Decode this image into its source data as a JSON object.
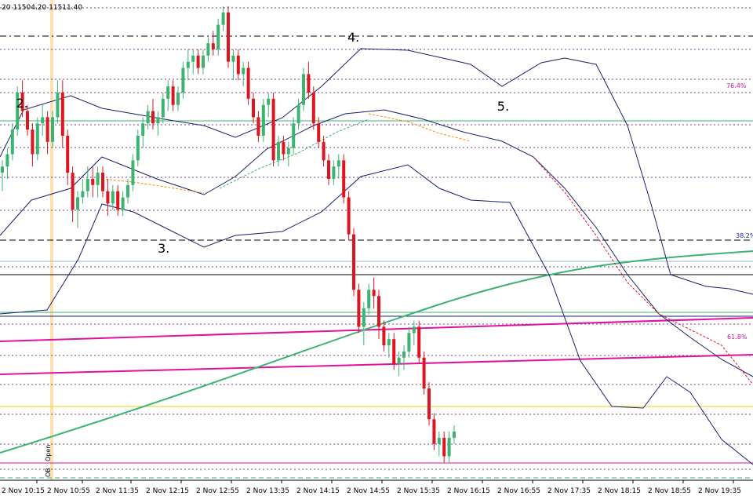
{
  "header": {
    "ohlc_text": "20 11504.20 11511.40"
  },
  "colors": {
    "bull": "#3cb371",
    "bear": "#e0141e",
    "bollinger": "#1b1f6b",
    "ma_long": "#3cb371",
    "ma_dash_red": "#e0141e",
    "ma_dash_orange": "#ff8c00",
    "ma_dash_green": "#3cb371",
    "pink_trend": "#e0119f",
    "fib_pink": "#d0179b",
    "fib_blue": "#1a1ab4",
    "session_line": "#ffe0b0",
    "yellow_line": "#e8d000"
  },
  "waves": [
    {
      "label": "2.",
      "bar": 4
    },
    {
      "label": "3.",
      "bar": 30
    },
    {
      "label": "4.",
      "bar": 70
    },
    {
      "label": "5.",
      "bar": 97
    }
  ],
  "fib_labels": [
    {
      "label": "76.4%",
      "color": "pink"
    },
    {
      "label": "38.2%",
      "color": "blue"
    },
    {
      "label": "61.8%",
      "color": "pink"
    }
  ],
  "session_labels": {
    "open": "Open",
    "ob": "OB"
  },
  "chart_data": {
    "type": "candlestick",
    "instrument": "",
    "x_tick_labels": [
      "2 Nov 10:15",
      "2 Nov 10:55",
      "2 Nov 11:35",
      "2 Nov 12:15",
      "2 Nov 12:55",
      "2 Nov 13:35",
      "2 Nov 14:15",
      "2 Nov 14:55",
      "2 Nov 15:35",
      "2 Nov 16:15",
      "2 Nov 16:55",
      "2 Nov 17:35",
      "2 Nov 18:15",
      "2 Nov 18:55",
      "2 Nov 19:35"
    ],
    "ylim": [
      11460,
      11536
    ],
    "candles": [
      [
        11509,
        11511,
        11506,
        11510
      ],
      [
        11510,
        11513,
        11508,
        11512
      ],
      [
        11512,
        11517,
        11511,
        11516
      ],
      [
        11516,
        11523,
        11515,
        11522
      ],
      [
        11522,
        11524,
        11518,
        11519
      ],
      [
        11519,
        11520,
        11515,
        11516
      ],
      [
        11516,
        11517,
        11510,
        11512
      ],
      [
        11512,
        11518,
        11511,
        11517
      ],
      [
        11517,
        11520,
        11515,
        11518
      ],
      [
        11518,
        11519,
        11512,
        11514
      ],
      [
        11514,
        11519,
        11513,
        11518
      ],
      [
        11518,
        11524,
        11517,
        11522
      ],
      [
        11522,
        11524,
        11513,
        11515
      ],
      [
        11515,
        11516,
        11507,
        11509
      ],
      [
        11509,
        11510,
        11501,
        11503
      ],
      [
        11503,
        11506,
        11500,
        11505
      ],
      [
        11505,
        11508,
        11504,
        11506
      ],
      [
        11506,
        11510,
        11505,
        11508
      ],
      [
        11508,
        11510,
        11505,
        11507
      ],
      [
        11507,
        11510,
        11505,
        11509
      ],
      [
        11509,
        11510,
        11505,
        11506
      ],
      [
        11506,
        11508,
        11502,
        11504
      ],
      [
        11504,
        11507,
        11503,
        11506
      ],
      [
        11506,
        11507,
        11502,
        11503
      ],
      [
        11503,
        11506,
        11502,
        11505
      ],
      [
        11505,
        11508,
        11504,
        11507
      ],
      [
        11507,
        11512,
        11506,
        11511
      ],
      [
        11511,
        11516,
        11510,
        11515
      ],
      [
        11515,
        11518,
        11513,
        11517
      ],
      [
        11517,
        11520,
        11516,
        11519
      ],
      [
        11519,
        11521,
        11516,
        11517
      ],
      [
        11517,
        11519,
        11515,
        11518
      ],
      [
        11518,
        11522,
        11517,
        11521
      ],
      [
        11521,
        11524,
        11519,
        11523
      ],
      [
        11523,
        11524,
        11519,
        11520
      ],
      [
        11520,
        11523,
        11519,
        11522
      ],
      [
        11522,
        11527,
        11521,
        11526
      ],
      [
        11526,
        11529,
        11524,
        11527
      ],
      [
        11527,
        11529,
        11525,
        11528
      ],
      [
        11528,
        11529,
        11525,
        11526
      ],
      [
        11526,
        11529,
        11525,
        11528
      ],
      [
        11528,
        11531,
        11527,
        11530
      ],
      [
        11530,
        11532,
        11528,
        11529
      ],
      [
        11529,
        11534,
        11528,
        11533
      ],
      [
        11533,
        11536,
        11532,
        11535
      ],
      [
        11535,
        11536,
        11526,
        11527
      ],
      [
        11527,
        11529,
        11524,
        11528
      ],
      [
        11528,
        11529,
        11524,
        11525
      ],
      [
        11525,
        11527,
        11523,
        11526
      ],
      [
        11526,
        11527,
        11520,
        11521
      ],
      [
        11521,
        11522,
        11517,
        11518
      ],
      [
        11518,
        11519,
        11514,
        11515
      ],
      [
        11515,
        11521,
        11514,
        11520
      ],
      [
        11520,
        11522,
        11518,
        11521
      ],
      [
        11521,
        11522,
        11510,
        11511
      ],
      [
        11511,
        11515,
        11510,
        11514
      ],
      [
        11514,
        11515,
        11511,
        11512
      ],
      [
        11512,
        11514,
        11510,
        11513
      ],
      [
        11513,
        11518,
        11512,
        11517
      ],
      [
        11517,
        11521,
        11516,
        11520
      ],
      [
        11520,
        11526,
        11519,
        11525
      ],
      [
        11525,
        11527,
        11521,
        11522
      ],
      [
        11522,
        11523,
        11516,
        11517
      ],
      [
        11517,
        11518,
        11513,
        11514
      ],
      [
        11514,
        11515,
        11510,
        11511
      ],
      [
        11511,
        11512,
        11507,
        11508
      ],
      [
        11508,
        11511,
        11507,
        11510
      ],
      [
        11510,
        11512,
        11508,
        11511
      ],
      [
        11511,
        11512,
        11504,
        11505
      ],
      [
        11505,
        11506,
        11498,
        11499
      ],
      [
        11499,
        11500,
        11489,
        11490
      ],
      [
        11490,
        11491,
        11483,
        11484
      ],
      [
        11484,
        11488,
        11481,
        11487
      ],
      [
        11487,
        11491,
        11486,
        11490
      ],
      [
        11490,
        11492,
        11487,
        11489
      ],
      [
        11489,
        11490,
        11482,
        11484
      ],
      [
        11484,
        11485,
        11480,
        11481
      ],
      [
        11481,
        11483,
        11479,
        11482
      ],
      [
        11482,
        11483,
        11477,
        11478
      ],
      [
        11478,
        11480,
        11476,
        11479
      ],
      [
        11479,
        11481,
        11477,
        11480
      ],
      [
        11480,
        11484,
        11479,
        11483
      ],
      [
        11483,
        11485,
        11481,
        11484
      ],
      [
        11484,
        11485,
        11478,
        11479
      ],
      [
        11479,
        11480,
        11473,
        11474
      ],
      [
        11474,
        11475,
        11468,
        11469
      ],
      [
        11469,
        11470,
        11464,
        11465
      ],
      [
        11465,
        11467,
        11463,
        11466
      ],
      [
        11466,
        11467,
        11462,
        11463
      ],
      [
        11463,
        11467,
        11462,
        11466
      ],
      [
        11466,
        11468,
        11465,
        11467
      ]
    ],
    "overlays": [
      "Bollinger Bands (upper / middle / lower)",
      "Long-period moving average (green, rising)",
      "Short moving averages (dashed red / orange / green)",
      "Two pink trend lines",
      "Fibonacci levels 76.4%, 38.2%, 61.8%"
    ],
    "grid": false
  }
}
